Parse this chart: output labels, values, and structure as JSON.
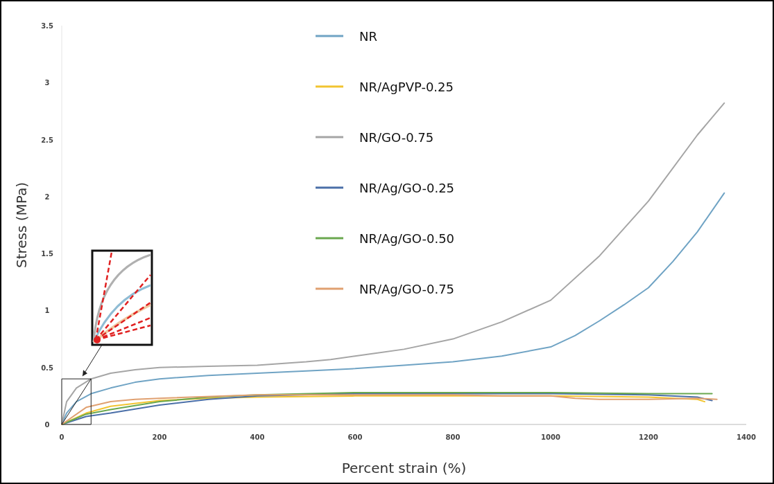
{
  "chart_data": {
    "type": "line",
    "xlabel": "Percent strain (%)",
    "ylabel": "Stress (MPa)",
    "xlim": [
      0,
      1400
    ],
    "xticks": [
      0,
      200,
      400,
      600,
      800,
      1000,
      1200,
      1400
    ],
    "ylim": [
      0,
      3.5
    ],
    "yticks": [
      0,
      0.5,
      1,
      1.5,
      2,
      2.5,
      3,
      3.5
    ],
    "grid": false,
    "legend": "top",
    "marker": "none",
    "line_style": "solid",
    "series": [
      {
        "name": "NR",
        "color": "#6fa3c4",
        "x": [
          0,
          10,
          30,
          60,
          100,
          150,
          200,
          300,
          400,
          500,
          600,
          700,
          800,
          900,
          1000,
          1050,
          1100,
          1150,
          1200,
          1250,
          1300,
          1355
        ],
        "values": [
          0,
          0.1,
          0.2,
          0.27,
          0.32,
          0.37,
          0.4,
          0.43,
          0.45,
          0.47,
          0.49,
          0.52,
          0.55,
          0.6,
          0.68,
          0.78,
          0.91,
          1.05,
          1.2,
          1.43,
          1.69,
          2.03
        ]
      },
      {
        "name": "NR/AgPVP-0.25",
        "color": "#f2c430",
        "x": [
          0,
          50,
          100,
          200,
          300,
          400,
          600,
          800,
          1000,
          1200,
          1300,
          1315
        ],
        "values": [
          0,
          0.1,
          0.16,
          0.21,
          0.23,
          0.24,
          0.25,
          0.25,
          0.25,
          0.24,
          0.22,
          0.2
        ]
      },
      {
        "name": "NR/GO-0.75",
        "color": "#a5a5a5",
        "x": [
          0,
          10,
          30,
          60,
          100,
          150,
          200,
          300,
          400,
          500,
          550,
          600,
          700,
          800,
          900,
          1000,
          1100,
          1200,
          1300,
          1355
        ],
        "values": [
          0,
          0.2,
          0.32,
          0.4,
          0.45,
          0.48,
          0.5,
          0.51,
          0.52,
          0.55,
          0.57,
          0.6,
          0.66,
          0.75,
          0.9,
          1.09,
          1.48,
          1.96,
          2.54,
          2.82
        ]
      },
      {
        "name": "NR/Ag/GO-0.25",
        "color": "#4a6fa8",
        "x": [
          0,
          50,
          100,
          200,
          300,
          400,
          600,
          800,
          1000,
          1200,
          1300,
          1330
        ],
        "values": [
          0,
          0.07,
          0.1,
          0.17,
          0.22,
          0.25,
          0.27,
          0.27,
          0.27,
          0.26,
          0.24,
          0.21
        ]
      },
      {
        "name": "NR/Ag/GO-0.50",
        "color": "#6aa84f",
        "x": [
          0,
          50,
          100,
          200,
          300,
          400,
          600,
          800,
          1000,
          1200,
          1330
        ],
        "values": [
          0,
          0.09,
          0.13,
          0.2,
          0.24,
          0.26,
          0.28,
          0.28,
          0.28,
          0.27,
          0.27
        ]
      },
      {
        "name": "NR/Ag/GO-0.75",
        "color": "#e0a070",
        "x": [
          0,
          50,
          100,
          150,
          200,
          400,
          600,
          800,
          900,
          1000,
          1050,
          1100,
          1200,
          1300,
          1340
        ],
        "values": [
          0,
          0.15,
          0.2,
          0.22,
          0.23,
          0.26,
          0.26,
          0.26,
          0.25,
          0.25,
          0.23,
          0.22,
          0.22,
          0.23,
          0.22
        ]
      }
    ]
  }
}
